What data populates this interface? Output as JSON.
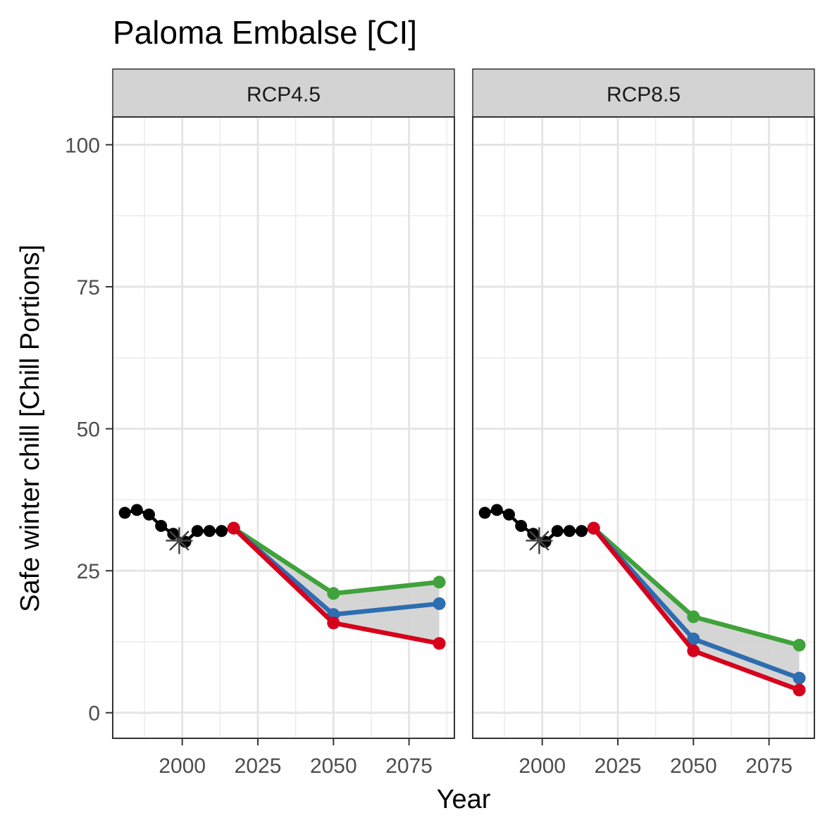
{
  "chart_data": {
    "type": "line",
    "title": "Paloma Embalse [CI]",
    "xlabel": "Year",
    "ylabel": "Safe winter chill [Chill Portions]",
    "xlim": [
      1977,
      2090
    ],
    "ylim": [
      -4.5,
      104.9
    ],
    "x_ticks": [
      2000,
      2025,
      2050,
      2075
    ],
    "y_ticks": [
      0,
      25,
      50,
      75,
      100
    ],
    "x_tick_labels": [
      "2000",
      "2025",
      "2050",
      "2075"
    ],
    "y_tick_labels": [
      "0",
      "25",
      "50",
      "75",
      "100"
    ],
    "grid": true,
    "legend": "none",
    "colors": {
      "historic": "#000000",
      "reference_marker": "#444444",
      "green": "#3fa23a",
      "blue": "#2e6db0",
      "red": "#d7001c",
      "band": "#d3d3d3"
    },
    "panels": [
      {
        "label": "RCP4.5",
        "historic": {
          "x": [
            1981,
            1985,
            1989,
            1993,
            1997,
            2001,
            2005,
            2009,
            2013,
            2017
          ],
          "y": [
            35.2,
            35.7,
            34.9,
            32.9,
            31.5,
            30.1,
            32.0,
            32.0,
            32.0,
            32.5
          ]
        },
        "reference_point": {
          "x": 1999,
          "y": 30.3
        },
        "band": {
          "x": [
            2017,
            2050,
            2085
          ],
          "lower": [
            32.5,
            15.8,
            12.2
          ],
          "upper": [
            32.5,
            21.0,
            23.0
          ]
        },
        "series": [
          {
            "color": "green",
            "x": [
              2017,
              2050,
              2085
            ],
            "y": [
              32.5,
              21.0,
              23.0
            ]
          },
          {
            "color": "blue",
            "x": [
              2017,
              2050,
              2085
            ],
            "y": [
              32.5,
              17.3,
              19.2
            ]
          },
          {
            "color": "red",
            "x": [
              2017,
              2050,
              2085
            ],
            "y": [
              32.5,
              15.8,
              12.2
            ]
          }
        ]
      },
      {
        "label": "RCP8.5",
        "historic": {
          "x": [
            1981,
            1985,
            1989,
            1993,
            1997,
            2001,
            2005,
            2009,
            2013,
            2017
          ],
          "y": [
            35.2,
            35.7,
            34.9,
            32.9,
            31.5,
            30.1,
            32.0,
            32.0,
            32.0,
            32.5
          ]
        },
        "reference_point": {
          "x": 1999,
          "y": 30.3
        },
        "band": {
          "x": [
            2017,
            2050,
            2085
          ],
          "lower": [
            32.5,
            10.9,
            4.0
          ],
          "upper": [
            32.5,
            16.9,
            11.9
          ]
        },
        "series": [
          {
            "color": "green",
            "x": [
              2017,
              2050,
              2085
            ],
            "y": [
              32.5,
              16.9,
              11.9
            ]
          },
          {
            "color": "blue",
            "x": [
              2017,
              2050,
              2085
            ],
            "y": [
              32.5,
              13.0,
              6.1
            ]
          },
          {
            "color": "red",
            "x": [
              2017,
              2050,
              2085
            ],
            "y": [
              32.5,
              10.9,
              4.0
            ]
          }
        ]
      }
    ]
  }
}
